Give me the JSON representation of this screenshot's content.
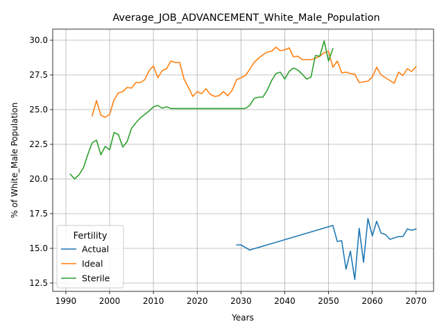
{
  "chart_data": {
    "type": "line",
    "title": "Average_JOB_ADVANCEMENT_White_Male_Population",
    "xlabel": "Years",
    "ylabel": "% of White_Male Population",
    "xlim": [
      1987,
      2074
    ],
    "ylim": [
      11.9,
      30.8
    ],
    "xticks": [
      1990,
      2000,
      2010,
      2020,
      2030,
      2040,
      2050,
      2060,
      2070
    ],
    "yticks": [
      12.5,
      15.0,
      17.5,
      20.0,
      22.5,
      25.0,
      27.5,
      30.0
    ],
    "ytick_labels": [
      "12.5",
      "15.0",
      "17.5",
      "20.0",
      "22.5",
      "25.0",
      "27.5",
      "30.0"
    ],
    "grid": true,
    "legend": {
      "title": "Fertility",
      "placement": "lower-left"
    },
    "series": [
      {
        "name": "Actual",
        "color": "#1f77b4",
        "x": [
          2029,
          2030,
          2032,
          2051,
          2052,
          2053,
          2054,
          2055,
          2056,
          2057,
          2058,
          2059,
          2060,
          2061,
          2062,
          2063,
          2064,
          2065,
          2066,
          2067,
          2068,
          2069,
          2070
        ],
        "values": [
          15.25,
          15.25,
          14.88,
          16.65,
          15.5,
          15.55,
          13.5,
          14.8,
          12.75,
          16.45,
          14.0,
          17.15,
          15.9,
          16.95,
          16.1,
          16.0,
          15.65,
          15.75,
          15.85,
          15.85,
          16.4,
          16.3,
          16.4
        ]
      },
      {
        "name": "Ideal",
        "color": "#ff7f0e",
        "x": [
          1996,
          1997,
          1998,
          1999,
          2000,
          2001,
          2002,
          2003,
          2004,
          2005,
          2006,
          2007,
          2008,
          2009,
          2010,
          2011,
          2012,
          2013,
          2014,
          2015,
          2016,
          2017,
          2018,
          2019,
          2020,
          2021,
          2022,
          2023,
          2024,
          2025,
          2026,
          2027,
          2028,
          2029,
          2030,
          2031,
          2032,
          2033,
          2034,
          2035,
          2036,
          2037,
          2038,
          2039,
          2040,
          2041,
          2042,
          2043,
          2044,
          2045,
          2046,
          2047,
          2048,
          2049,
          2050,
          2051,
          2052,
          2053,
          2054,
          2055,
          2056,
          2057,
          2058,
          2059,
          2060,
          2061,
          2062,
          2063,
          2064,
          2065,
          2066,
          2067,
          2068,
          2069,
          2070
        ],
        "values": [
          24.55,
          25.65,
          24.6,
          24.45,
          24.65,
          25.7,
          26.2,
          26.3,
          26.6,
          26.55,
          26.95,
          26.95,
          27.15,
          27.8,
          28.15,
          27.3,
          27.8,
          27.95,
          28.5,
          28.4,
          28.4,
          27.2,
          26.6,
          25.95,
          26.3,
          26.15,
          26.5,
          26.1,
          25.95,
          26.0,
          26.3,
          26.0,
          26.4,
          27.15,
          27.3,
          27.45,
          27.9,
          28.4,
          28.7,
          28.95,
          29.15,
          29.2,
          29.5,
          29.25,
          29.3,
          29.45,
          28.8,
          28.85,
          28.6,
          28.6,
          28.6,
          28.7,
          28.85,
          29.1,
          29.2,
          28.05,
          28.5,
          27.65,
          27.7,
          27.6,
          27.55,
          26.95,
          27.0,
          27.05,
          27.35,
          28.05,
          27.5,
          27.3,
          27.1,
          26.9,
          27.7,
          27.45,
          27.95,
          27.75,
          28.1
        ]
      },
      {
        "name": "Sterile",
        "color": "#2ca02c",
        "x": [
          1991,
          1992,
          1993,
          1994,
          1995,
          1996,
          1997,
          1998,
          1999,
          2000,
          2001,
          2002,
          2003,
          2004,
          2005,
          2006,
          2007,
          2008,
          2009,
          2010,
          2011,
          2012,
          2013,
          2014,
          2015,
          2016,
          2017,
          2018,
          2019,
          2020,
          2021,
          2022,
          2023,
          2024,
          2025,
          2026,
          2027,
          2028,
          2029,
          2030,
          2031,
          2032,
          2033,
          2034,
          2035,
          2036,
          2037,
          2038,
          2039,
          2040,
          2041,
          2042,
          2043,
          2044,
          2045,
          2046,
          2047,
          2048,
          2049,
          2050,
          2051
        ],
        "values": [
          20.35,
          20.0,
          20.3,
          20.8,
          21.75,
          22.6,
          22.8,
          21.75,
          22.35,
          22.1,
          23.35,
          23.2,
          22.3,
          22.7,
          23.65,
          24.05,
          24.4,
          24.65,
          24.9,
          25.2,
          25.3,
          25.1,
          25.2,
          25.08,
          25.08,
          25.08,
          25.08,
          25.08,
          25.08,
          25.08,
          25.08,
          25.08,
          25.08,
          25.08,
          25.08,
          25.08,
          25.08,
          25.08,
          25.08,
          25.08,
          25.08,
          25.3,
          25.8,
          25.9,
          25.9,
          26.4,
          27.1,
          27.6,
          27.7,
          27.2,
          27.75,
          28.0,
          27.85,
          27.55,
          27.2,
          27.35,
          28.9,
          28.85,
          29.95,
          28.5,
          29.4
        ]
      }
    ]
  }
}
